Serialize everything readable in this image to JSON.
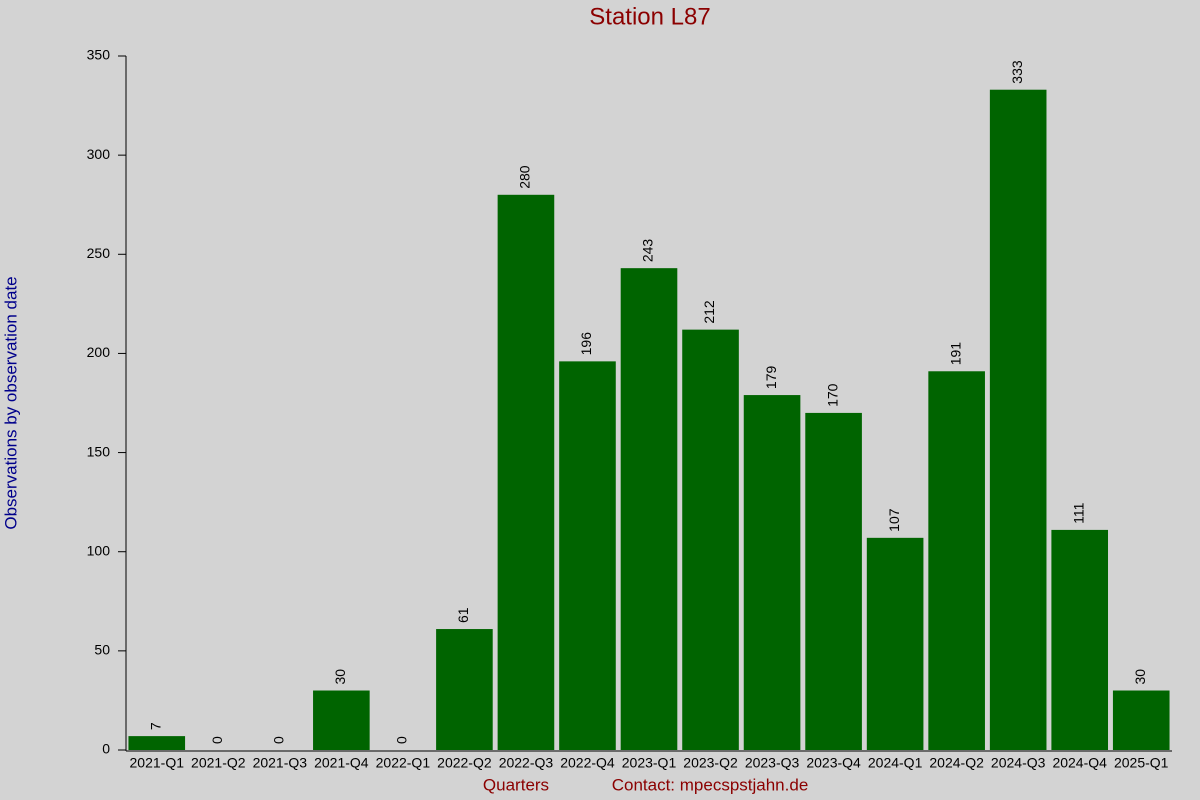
{
  "chart_data": {
    "type": "bar",
    "title": "Station L87",
    "x_label": "Quarters",
    "y_label": "Observations by observation date",
    "annotation": "Contact: mpecspstjahn.de",
    "categories": [
      "2021-Q1",
      "2021-Q2",
      "2021-Q3",
      "2021-Q4",
      "2022-Q1",
      "2022-Q2",
      "2022-Q3",
      "2022-Q4",
      "2023-Q1",
      "2023-Q2",
      "2023-Q3",
      "2023-Q4",
      "2024-Q1",
      "2024-Q2",
      "2024-Q3",
      "2024-Q4",
      "2025-Q1"
    ],
    "values": [
      7,
      0,
      0,
      30,
      0,
      61,
      280,
      196,
      243,
      212,
      179,
      170,
      107,
      191,
      333,
      111,
      30
    ],
    "color": "#006400",
    "ylim": [
      0,
      350
    ],
    "yticks": [
      0,
      50,
      100,
      150,
      200,
      250,
      300,
      350
    ],
    "grid": false
  }
}
